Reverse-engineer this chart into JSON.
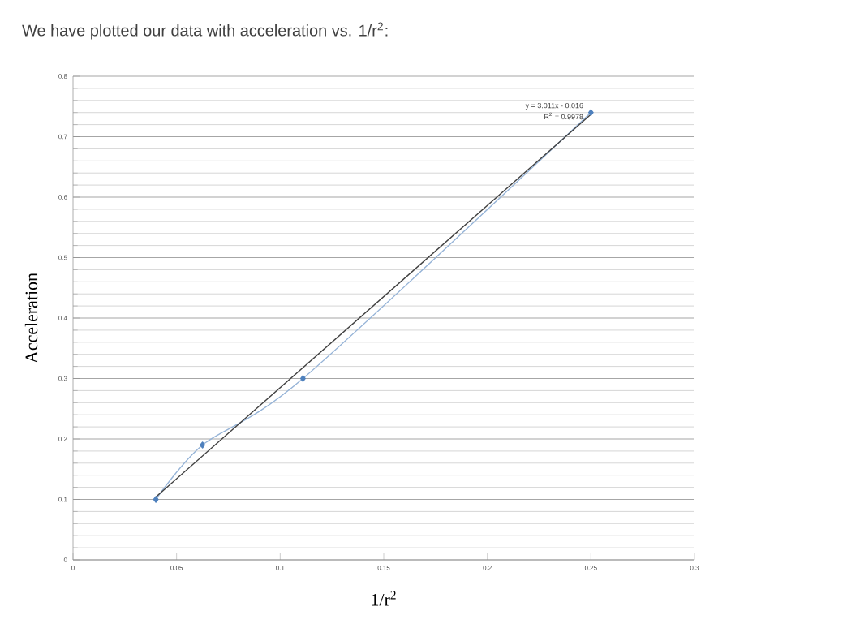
{
  "chart_data": {
    "type": "line",
    "title": "We have plotted our data with acceleration vs. 1/r$^{2}$:",
    "xlabel": "1/r$^{2}$",
    "ylabel": "Acceleration",
    "xlim": [
      0,
      0.3
    ],
    "xticks": [
      0,
      0.05,
      0.1,
      0.15,
      0.2,
      0.25,
      0.3
    ],
    "ylim": [
      0,
      0.8
    ],
    "yticks": [
      0,
      0.1,
      0.2,
      0.3,
      0.4,
      0.5,
      0.6,
      0.7,
      0.8
    ],
    "grid": "y",
    "marker": "diamond",
    "series": [
      {
        "color": "#95b3d7",
        "x": [
          0.04,
          0.0625,
          0.111,
          0.25
        ],
        "values": [
          0.1,
          0.19,
          0.3,
          0.74
        ]
      },
      {
        "type": "line",
        "color": "#404040",
        "x": [
          0.04,
          0.25
        ],
        "values": [
          0.104,
          0.737
        ],
        "marker": "none"
      }
    ],
    "annotations": [
      "y = 3.011x - 0.016",
      "R$^{2}$ = 0.9978"
    ]
  }
}
